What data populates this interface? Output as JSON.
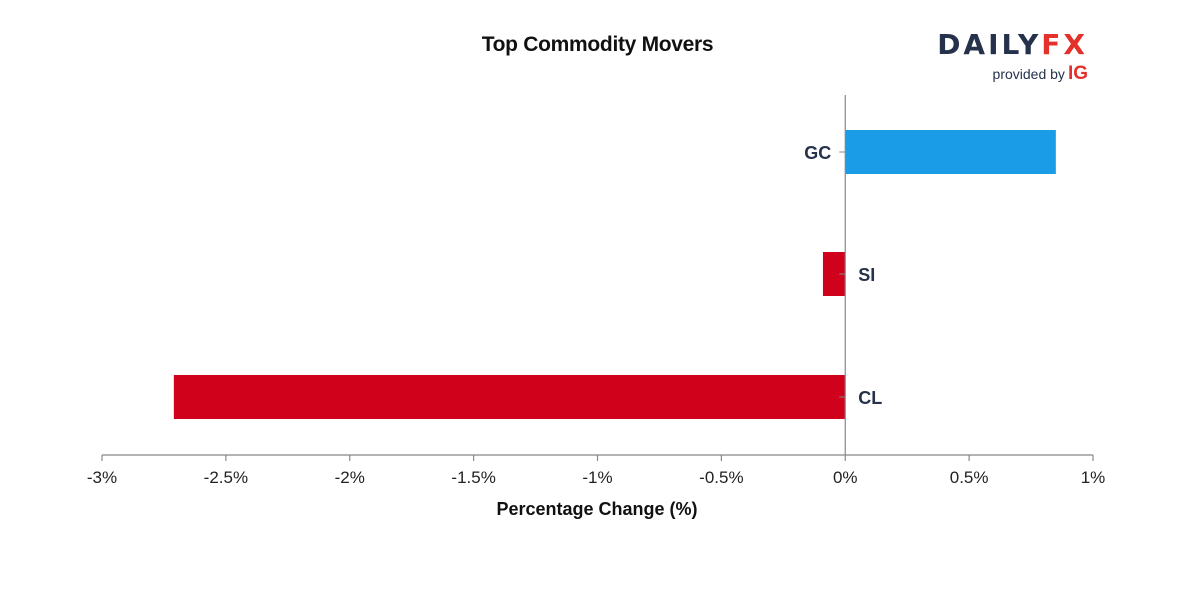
{
  "chart_data": {
    "type": "bar",
    "orientation": "horizontal",
    "title": "Top Commodity Movers",
    "xlabel": "Percentage Change (%)",
    "ylabel": "",
    "xlim": [
      -3,
      1
    ],
    "x_ticks": [
      -3,
      -2.5,
      -2,
      -1.5,
      -1,
      -0.5,
      0,
      0.5,
      1
    ],
    "x_tick_labels": [
      "-3%",
      "-2.5%",
      "-2%",
      "-1.5%",
      "-1%",
      "-0.5%",
      "0%",
      "0.5%",
      "1%"
    ],
    "categories": [
      "GC",
      "SI",
      "CL"
    ],
    "values": [
      0.85,
      -0.09,
      -2.71
    ],
    "grid": false,
    "legend": "none"
  },
  "colors": {
    "positive": "#1a9de6",
    "negative": "#d0021b",
    "axis": "#888888"
  },
  "branding": {
    "logo_prefix": "DAILY",
    "logo_suffix": "FX",
    "provided_by": "provided by",
    "provider": "IG"
  }
}
